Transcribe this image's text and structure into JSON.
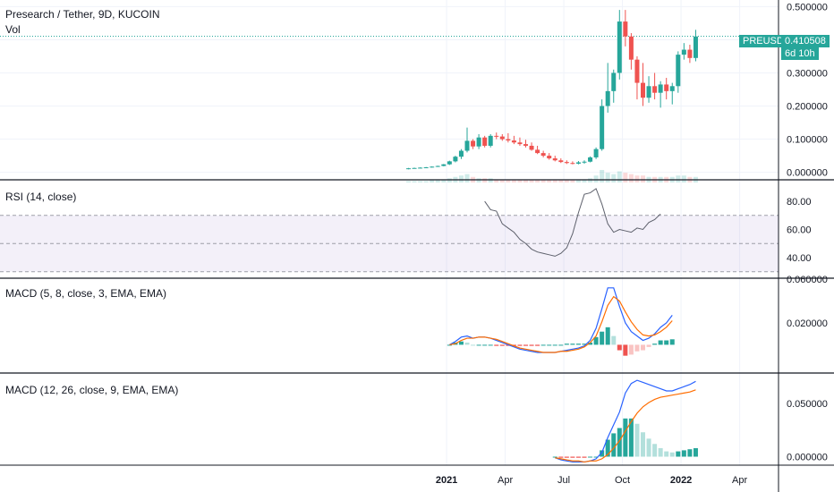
{
  "header": {
    "title": "Presearch / Tether, 9D, KUCOIN",
    "vol_label": "Vol"
  },
  "price_badge": {
    "symbol": "PREUSDT",
    "price": "0.410508",
    "countdown": "6d 10h"
  },
  "colors": {
    "up": "#26a69a",
    "down": "#ef5350",
    "rsi": "#7e57c2",
    "macd": "#2962ff",
    "signal": "#ff6d00"
  },
  "chart_data": [
    {
      "type": "candlestick",
      "title": "Presearch / Tether, 9D, KUCOIN",
      "ylim": [
        -0.02,
        0.52
      ],
      "y_ticks": [
        "0.500000",
        "0.400000",
        "0.300000",
        "0.200000",
        "0.100000",
        "0.000000"
      ],
      "x_ticks": [
        "2021",
        "Apr",
        "Jul",
        "Oct",
        "2022",
        "Apr"
      ],
      "x_tick_index": [
        6.5,
        16.5,
        26.5,
        36.5,
        46.5,
        56.5
      ],
      "last_price": 0.410508,
      "ohlc": [
        [
          0.01,
          0.013,
          0.009,
          0.012
        ],
        [
          0.012,
          0.014,
          0.011,
          0.013
        ],
        [
          0.013,
          0.015,
          0.012,
          0.014
        ],
        [
          0.014,
          0.016,
          0.013,
          0.015
        ],
        [
          0.015,
          0.018,
          0.014,
          0.017
        ],
        [
          0.017,
          0.02,
          0.016,
          0.019
        ],
        [
          0.019,
          0.025,
          0.018,
          0.024
        ],
        [
          0.024,
          0.035,
          0.022,
          0.033
        ],
        [
          0.033,
          0.05,
          0.03,
          0.047
        ],
        [
          0.047,
          0.07,
          0.04,
          0.065
        ],
        [
          0.065,
          0.135,
          0.06,
          0.095
        ],
        [
          0.095,
          0.1,
          0.07,
          0.078
        ],
        [
          0.078,
          0.115,
          0.07,
          0.105
        ],
        [
          0.105,
          0.11,
          0.075,
          0.08
        ],
        [
          0.08,
          0.115,
          0.075,
          0.11
        ],
        [
          0.11,
          0.12,
          0.1,
          0.108
        ],
        [
          0.108,
          0.115,
          0.095,
          0.1
        ],
        [
          0.1,
          0.118,
          0.09,
          0.096
        ],
        [
          0.096,
          0.11,
          0.085,
          0.09
        ],
        [
          0.09,
          0.105,
          0.08,
          0.085
        ],
        [
          0.085,
          0.098,
          0.075,
          0.08
        ],
        [
          0.08,
          0.09,
          0.065,
          0.068
        ],
        [
          0.068,
          0.08,
          0.055,
          0.058
        ],
        [
          0.058,
          0.065,
          0.045,
          0.05
        ],
        [
          0.05,
          0.058,
          0.038,
          0.042
        ],
        [
          0.042,
          0.05,
          0.033,
          0.036
        ],
        [
          0.036,
          0.042,
          0.028,
          0.031
        ],
        [
          0.031,
          0.036,
          0.025,
          0.028
        ],
        [
          0.028,
          0.033,
          0.024,
          0.026
        ],
        [
          0.026,
          0.034,
          0.024,
          0.03
        ],
        [
          0.03,
          0.036,
          0.026,
          0.032
        ],
        [
          0.032,
          0.048,
          0.03,
          0.045
        ],
        [
          0.045,
          0.075,
          0.04,
          0.07
        ],
        [
          0.07,
          0.22,
          0.065,
          0.2
        ],
        [
          0.2,
          0.33,
          0.18,
          0.245
        ],
        [
          0.245,
          0.31,
          0.21,
          0.3
        ],
        [
          0.3,
          0.49,
          0.28,
          0.455
        ],
        [
          0.455,
          0.49,
          0.38,
          0.41
        ],
        [
          0.41,
          0.42,
          0.31,
          0.34
        ],
        [
          0.34,
          0.35,
          0.22,
          0.27
        ],
        [
          0.27,
          0.33,
          0.2,
          0.225
        ],
        [
          0.225,
          0.29,
          0.21,
          0.26
        ],
        [
          0.26,
          0.3,
          0.22,
          0.24
        ],
        [
          0.24,
          0.275,
          0.195,
          0.265
        ],
        [
          0.265,
          0.285,
          0.22,
          0.245
        ],
        [
          0.245,
          0.27,
          0.205,
          0.26
        ],
        [
          0.26,
          0.365,
          0.24,
          0.355
        ],
        [
          0.355,
          0.39,
          0.34,
          0.37
        ],
        [
          0.37,
          0.385,
          0.33,
          0.345
        ],
        [
          0.345,
          0.43,
          0.335,
          0.41
        ]
      ],
      "volume": [
        1,
        1,
        1,
        1,
        2,
        2,
        2,
        3,
        4,
        5,
        6,
        4,
        3,
        3,
        3,
        2,
        2,
        2,
        2,
        2,
        2,
        2,
        2,
        2,
        2,
        2,
        2,
        2,
        2,
        2,
        2,
        3,
        5,
        9,
        7,
        6,
        8,
        7,
        6,
        5,
        5,
        4,
        4,
        4,
        4,
        4,
        5,
        5,
        4,
        4
      ]
    },
    {
      "type": "line",
      "title": "RSI (14, close)",
      "ylim": [
        26,
        94
      ],
      "y_ticks": [
        "80.00",
        "60.00",
        "40.00"
      ],
      "band": [
        30,
        70
      ],
      "start_index": 13,
      "values": [
        80,
        74,
        73,
        64,
        61,
        58,
        53,
        50,
        46,
        44,
        43,
        42,
        41,
        43,
        47,
        57,
        72,
        85,
        86,
        89,
        78,
        64,
        58,
        60,
        59,
        58,
        61,
        60,
        65,
        67,
        71
      ]
    },
    {
      "type": "line",
      "title": "MACD (5, 8, close, 3, EMA, EMA)",
      "ylim": [
        -0.025,
        0.06
      ],
      "y_ticks": [
        "0.060000",
        "0.020000"
      ],
      "start_index": 7,
      "macd": [
        0.0,
        0.003,
        0.007,
        0.008,
        0.006,
        0.007,
        0.007,
        0.006,
        0.004,
        0.002,
        0.0,
        -0.002,
        -0.004,
        -0.005,
        -0.006,
        -0.007,
        -0.007,
        -0.007,
        -0.007,
        -0.006,
        -0.005,
        -0.004,
        -0.003,
        -0.001,
        0.004,
        0.015,
        0.033,
        0.052,
        0.052,
        0.035,
        0.02,
        0.012,
        0.008,
        0.004,
        0.006,
        0.01,
        0.016,
        0.02,
        0.027
      ],
      "signal": [
        0.0,
        0.001,
        0.004,
        0.006,
        0.006,
        0.007,
        0.007,
        0.006,
        0.005,
        0.003,
        0.001,
        -0.001,
        -0.003,
        -0.004,
        -0.005,
        -0.006,
        -0.007,
        -0.007,
        -0.007,
        -0.006,
        -0.006,
        -0.005,
        -0.004,
        -0.002,
        0.002,
        0.008,
        0.021,
        0.036,
        0.044,
        0.04,
        0.03,
        0.021,
        0.014,
        0.009,
        0.008,
        0.009,
        0.012,
        0.016,
        0.022
      ],
      "histogram": [
        0.0,
        0.002,
        0.003,
        0.002,
        0.0,
        0.0,
        0.0,
        0.0,
        -0.001,
        -0.001,
        -0.001,
        -0.001,
        -0.001,
        -0.001,
        -0.001,
        -0.001,
        0.0,
        0.0,
        0.0,
        0.0,
        0.001,
        0.001,
        0.001,
        0.001,
        0.002,
        0.007,
        0.012,
        0.016,
        0.008,
        -0.005,
        -0.01,
        -0.009,
        -0.006,
        -0.005,
        -0.002,
        0.001,
        0.004,
        0.004,
        0.005
      ]
    },
    {
      "type": "line",
      "title": "MACD (12, 26, close, 9, EMA, EMA)",
      "ylim": [
        -0.008,
        0.078
      ],
      "y_ticks": [
        "0.050000",
        "0.000000"
      ],
      "start_index": 25,
      "macd": [
        -0.001,
        -0.003,
        -0.004,
        -0.005,
        -0.005,
        -0.005,
        -0.004,
        -0.002,
        0.004,
        0.018,
        0.03,
        0.042,
        0.06,
        0.069,
        0.072,
        0.07,
        0.068,
        0.066,
        0.064,
        0.062,
        0.062,
        0.064,
        0.066,
        0.068,
        0.071
      ],
      "signal": [
        -0.001,
        -0.002,
        -0.003,
        -0.004,
        -0.004,
        -0.005,
        -0.004,
        -0.004,
        -0.002,
        0.002,
        0.008,
        0.015,
        0.024,
        0.033,
        0.041,
        0.047,
        0.051,
        0.054,
        0.056,
        0.057,
        0.058,
        0.059,
        0.06,
        0.061,
        0.063
      ],
      "histogram": [
        0.0,
        -0.001,
        -0.001,
        -0.001,
        -0.001,
        -0.001,
        0.0,
        0.0,
        0.006,
        0.016,
        0.022,
        0.027,
        0.036,
        0.036,
        0.031,
        0.023,
        0.017,
        0.012,
        0.008,
        0.005,
        0.004,
        0.005,
        0.006,
        0.007,
        0.008
      ]
    }
  ]
}
